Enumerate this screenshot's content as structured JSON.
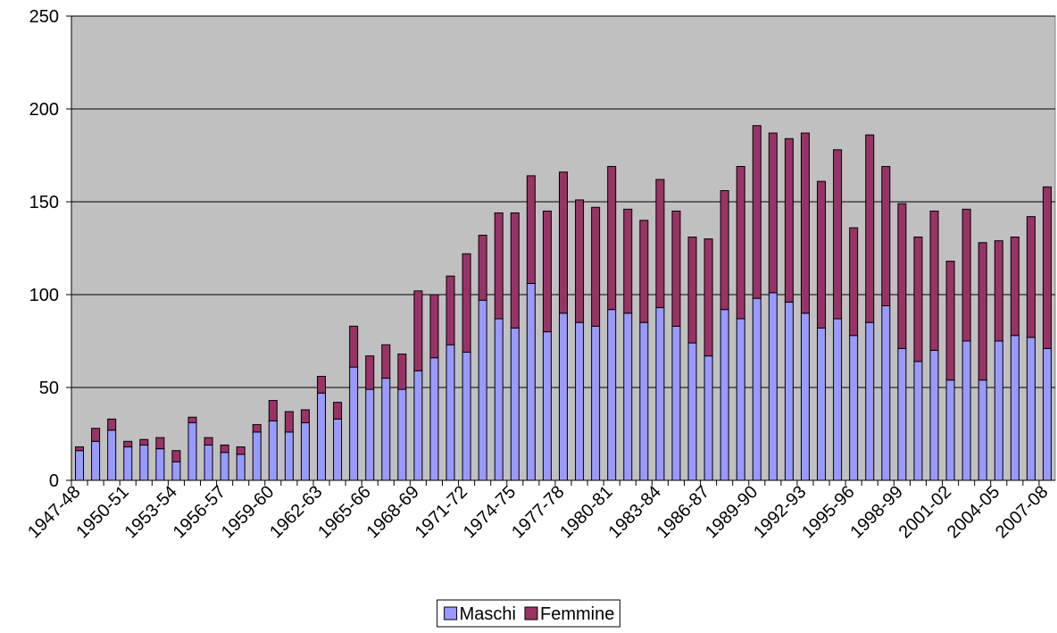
{
  "chart_data": {
    "type": "stacked_bar",
    "categories": [
      "1947-48",
      null,
      null,
      "1950-51",
      null,
      null,
      "1953-54",
      null,
      null,
      "1956-57",
      null,
      null,
      "1959-60",
      null,
      null,
      "1962-63",
      null,
      null,
      "1965-66",
      null,
      null,
      "1968-69",
      null,
      null,
      "1971-72",
      null,
      null,
      "1974-75",
      null,
      null,
      "1977-78",
      null,
      null,
      "1980-81",
      null,
      null,
      "1983-84",
      null,
      null,
      "1986-87",
      null,
      null,
      "1989-90",
      null,
      null,
      "1992-93",
      null,
      null,
      "1995-96",
      null,
      null,
      "1998-99",
      null,
      null,
      "2001-02",
      null,
      null,
      "2004-05",
      null,
      null,
      "2007-08"
    ],
    "series": [
      {
        "name": "Maschi",
        "color": "#9999ff",
        "values": [
          16,
          21,
          27,
          18,
          19,
          17,
          10,
          31,
          19,
          15,
          14,
          26,
          32,
          26,
          31,
          47,
          33,
          61,
          49,
          55,
          49,
          59,
          66,
          73,
          69,
          97,
          87,
          82,
          106,
          80,
          90,
          85,
          83,
          92,
          90,
          85,
          93,
          83,
          74,
          67,
          92,
          87,
          98,
          101,
          96,
          90,
          82,
          87,
          78,
          85,
          94,
          71,
          64,
          70,
          54,
          75,
          54,
          75,
          78,
          77,
          71
        ]
      },
      {
        "name": "Femmine",
        "color": "#993366",
        "values": [
          2,
          7,
          6,
          3,
          3,
          6,
          6,
          3,
          4,
          4,
          4,
          4,
          11,
          11,
          7,
          9,
          9,
          22,
          18,
          18,
          19,
          43,
          34,
          37,
          53,
          35,
          57,
          62,
          58,
          65,
          76,
          66,
          64,
          77,
          56,
          55,
          69,
          62,
          57,
          63,
          64,
          82,
          93,
          86,
          88,
          97,
          79,
          91,
          58,
          101,
          75,
          78,
          67,
          75,
          64,
          71,
          74,
          54,
          53,
          65,
          87
        ]
      }
    ],
    "ylim": [
      0,
      250
    ],
    "yticks": [
      0,
      50,
      100,
      150,
      200,
      250
    ],
    "grid": true,
    "legend": "bottom"
  }
}
